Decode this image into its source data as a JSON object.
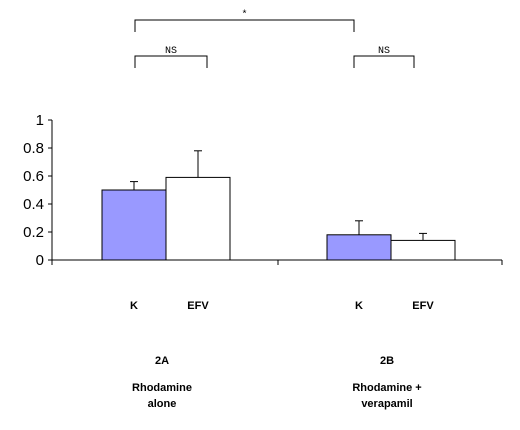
{
  "chart_data": {
    "type": "bar",
    "ylim": [
      0,
      1
    ],
    "yticks": [
      "0",
      "0.2",
      "0.4",
      "0.6",
      "0.8",
      "1"
    ],
    "grid": false,
    "legend": "none",
    "groups": [
      {
        "id": "2A",
        "label": "2A",
        "description_lines": [
          "Rhodamine",
          "alone"
        ],
        "bars": [
          {
            "label": "K",
            "value": 0.5,
            "error": 0.06,
            "color": "#9999ff"
          },
          {
            "label": "EFV",
            "value": 0.59,
            "error": 0.19,
            "color": "#ffffff"
          }
        ]
      },
      {
        "id": "2B",
        "label": "2B",
        "description_lines": [
          "Rhodamine +",
          "verapamil"
        ],
        "bars": [
          {
            "label": "K",
            "value": 0.18,
            "error": 0.1,
            "color": "#9999ff"
          },
          {
            "label": "EFV",
            "value": 0.14,
            "error": 0.05,
            "color": "#ffffff"
          }
        ]
      }
    ],
    "significance": [
      {
        "label": "*",
        "between": [
          "2A.K",
          "2B.K"
        ]
      },
      {
        "label": "NS",
        "between": [
          "2A.K",
          "2A.EFV"
        ]
      },
      {
        "label": "NS",
        "between": [
          "2B.K",
          "2B.EFV"
        ]
      }
    ]
  }
}
